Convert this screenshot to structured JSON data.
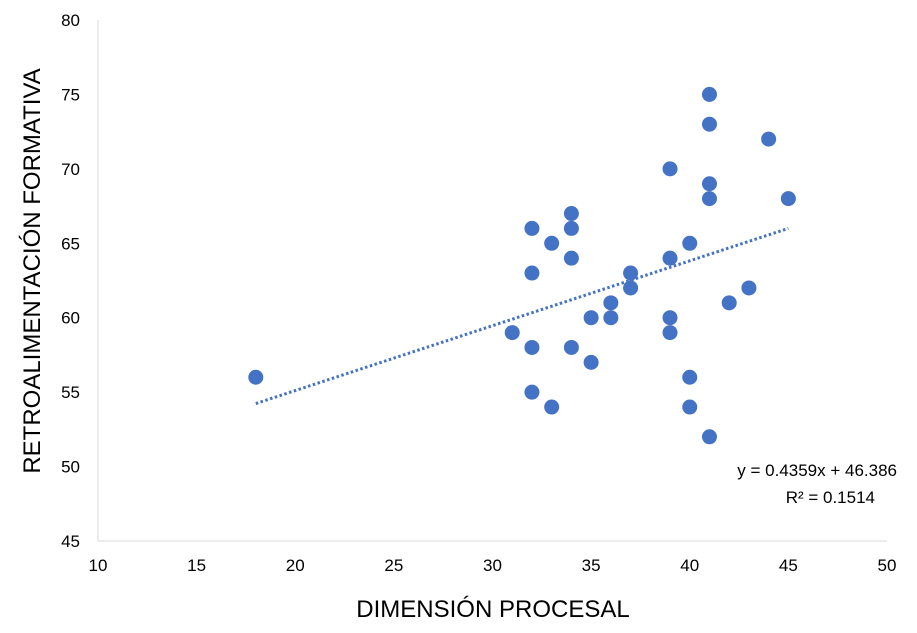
{
  "chart_data": {
    "type": "scatter",
    "xlabel": "DIMENSIÓN PROCESAL",
    "ylabel": "RETROALIMENTACIÓN FORMATIVA",
    "xlim": [
      10,
      50
    ],
    "ylim": [
      45,
      80
    ],
    "xticks": [
      10,
      15,
      20,
      25,
      30,
      35,
      40,
      45,
      50
    ],
    "yticks": [
      45,
      50,
      55,
      60,
      65,
      70,
      75,
      80
    ],
    "grid": false,
    "legend": "none",
    "series": [
      {
        "color": "#4472C4",
        "points": [
          [
            18,
            56
          ],
          [
            31,
            59
          ],
          [
            32,
            66
          ],
          [
            32,
            63
          ],
          [
            32,
            58
          ],
          [
            32,
            55
          ],
          [
            33,
            65
          ],
          [
            33,
            54
          ],
          [
            34,
            67
          ],
          [
            34,
            66
          ],
          [
            34,
            64
          ],
          [
            34,
            58
          ],
          [
            35,
            60
          ],
          [
            35,
            57
          ],
          [
            36,
            61
          ],
          [
            36,
            60
          ],
          [
            37,
            63
          ],
          [
            37,
            62
          ],
          [
            39,
            70
          ],
          [
            39,
            64
          ],
          [
            39,
            60
          ],
          [
            39,
            59
          ],
          [
            40,
            65
          ],
          [
            40,
            56
          ],
          [
            40,
            54
          ],
          [
            41,
            75
          ],
          [
            41,
            73
          ],
          [
            41,
            69
          ],
          [
            41,
            68
          ],
          [
            41,
            52
          ],
          [
            42,
            61
          ],
          [
            43,
            62
          ],
          [
            44,
            72
          ],
          [
            45,
            68
          ]
        ]
      }
    ],
    "trendline": {
      "type": "linear",
      "style": "dotted",
      "color": "#4472C4",
      "slope": 0.4359,
      "intercept": 46.386,
      "x_range": [
        18,
        45
      ],
      "equation_label": "y = 0.4359x + 46.386",
      "r2_label": "R² = 0.1514"
    }
  }
}
